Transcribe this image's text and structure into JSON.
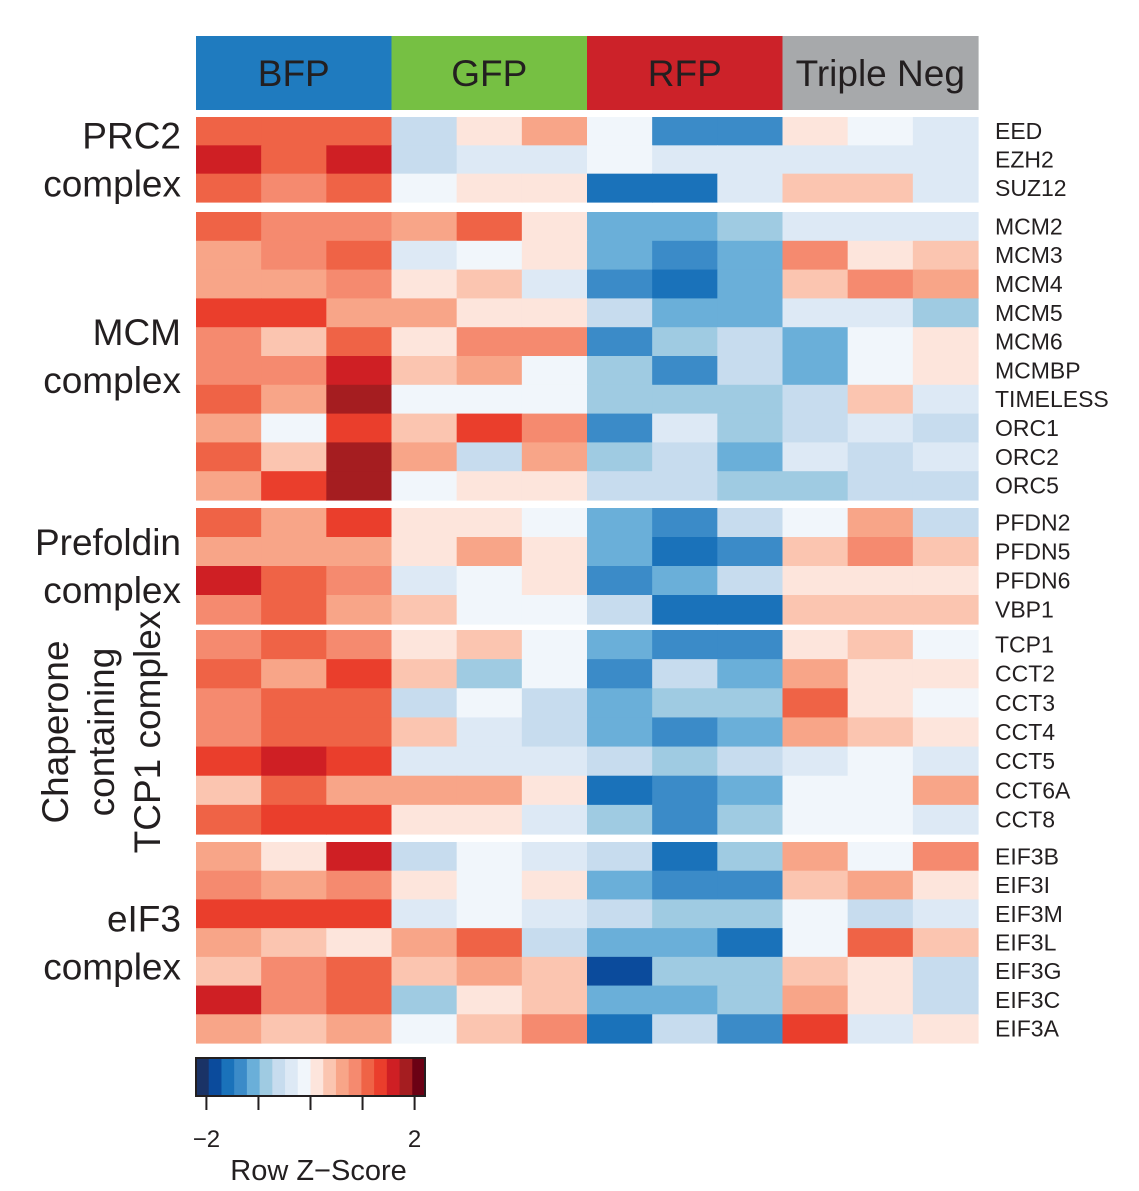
{
  "chart_data": {
    "type": "heatmap",
    "value_scale": "discrete levels -8..8 (each level ~0.25 Z), colorbar spans about -2.2..2.2",
    "column_groups": [
      {
        "label": "BFP",
        "color": "#1f7bbf",
        "replicates": 3
      },
      {
        "label": "GFP",
        "color": "#76c043",
        "replicates": 3
      },
      {
        "label": "RFP",
        "color": "#cc2229",
        "replicates": 3
      },
      {
        "label": "Triple Neg",
        "color": "#a7a9ab",
        "replicates": 3
      }
    ],
    "row_groups": [
      {
        "label_lines": [
          "PRC2",
          "complex"
        ],
        "orientation": "horizontal",
        "rows": [
          {
            "name": "EED",
            "values": [
              5,
              5,
              5,
              -3,
              1,
              3,
              -1,
              -6,
              -6,
              1,
              -1,
              -2
            ]
          },
          {
            "name": "EZH2",
            "values": [
              7,
              5,
              7,
              -3,
              -2,
              -2,
              -1,
              -2,
              -2,
              -2,
              -2,
              -2
            ]
          },
          {
            "name": "SUZ12",
            "values": [
              5,
              4,
              5,
              -1,
              1,
              1,
              -7,
              -7,
              -2,
              2,
              2,
              -2
            ]
          }
        ]
      },
      {
        "label_lines": [
          "MCM",
          "complex"
        ],
        "orientation": "horizontal",
        "rows": [
          {
            "name": "MCM2",
            "values": [
              5,
              4,
              4,
              3,
              5,
              1,
              -5,
              -5,
              -4,
              -2,
              -2,
              -2
            ]
          },
          {
            "name": "MCM3",
            "values": [
              3,
              4,
              5,
              -2,
              -1,
              1,
              -5,
              -6,
              -5,
              4,
              1,
              2
            ]
          },
          {
            "name": "MCM4",
            "values": [
              3,
              3,
              4,
              1,
              2,
              -2,
              -6,
              -7,
              -5,
              2,
              4,
              3
            ]
          },
          {
            "name": "MCM5",
            "values": [
              6,
              6,
              3,
              3,
              1,
              1,
              -3,
              -5,
              -5,
              -2,
              -2,
              -4
            ]
          },
          {
            "name": "MCM6",
            "values": [
              4,
              2,
              5,
              1,
              4,
              4,
              -6,
              -4,
              -3,
              -5,
              -1,
              1
            ]
          },
          {
            "name": "MCMBP",
            "values": [
              4,
              4,
              7,
              2,
              3,
              -1,
              -4,
              -6,
              -3,
              -5,
              -1,
              1
            ]
          },
          {
            "name": "TIMELESS",
            "values": [
              5,
              3,
              8,
              -1,
              -1,
              -1,
              -4,
              -4,
              -4,
              -3,
              2,
              -2
            ]
          },
          {
            "name": "ORC1",
            "values": [
              3,
              -1,
              6,
              2,
              6,
              4,
              -6,
              -2,
              -4,
              -3,
              -2,
              -3
            ]
          },
          {
            "name": "ORC2",
            "values": [
              5,
              2,
              8,
              3,
              -3,
              3,
              -4,
              -3,
              -5,
              -2,
              -3,
              -2
            ]
          },
          {
            "name": "ORC5",
            "values": [
              3,
              6,
              8,
              -1,
              1,
              1,
              -3,
              -3,
              -4,
              -4,
              -3,
              -3
            ]
          }
        ]
      },
      {
        "label_lines": [
          "Prefoldin",
          "complex"
        ],
        "orientation": "horizontal",
        "rows": [
          {
            "name": "PFDN2",
            "values": [
              5,
              3,
              6,
              1,
              1,
              -1,
              -5,
              -6,
              -3,
              -1,
              3,
              -3
            ]
          },
          {
            "name": "PFDN5",
            "values": [
              3,
              3,
              3,
              1,
              3,
              1,
              -5,
              -7,
              -6,
              2,
              4,
              2
            ]
          },
          {
            "name": "PFDN6",
            "values": [
              7,
              5,
              4,
              -2,
              -1,
              1,
              -6,
              -5,
              -3,
              1,
              1,
              1
            ]
          },
          {
            "name": "VBP1",
            "values": [
              4,
              5,
              3,
              2,
              -1,
              -1,
              -3,
              -7,
              -7,
              2,
              2,
              2
            ]
          }
        ]
      },
      {
        "label_lines": [
          "Chaperone",
          "containing",
          "TCP1 complex"
        ],
        "orientation": "vertical",
        "rows": [
          {
            "name": "TCP1",
            "values": [
              4,
              5,
              4,
              1,
              2,
              -1,
              -5,
              -6,
              -6,
              1,
              2,
              -1
            ]
          },
          {
            "name": "CCT2",
            "values": [
              5,
              3,
              6,
              2,
              -4,
              -1,
              -6,
              -3,
              -5,
              3,
              1,
              1
            ]
          },
          {
            "name": "CCT3",
            "values": [
              4,
              5,
              5,
              -3,
              -1,
              -3,
              -5,
              -4,
              -4,
              5,
              1,
              -1
            ]
          },
          {
            "name": "CCT4",
            "values": [
              4,
              5,
              5,
              2,
              -2,
              -3,
              -5,
              -6,
              -5,
              3,
              2,
              1
            ]
          },
          {
            "name": "CCT5",
            "values": [
              6,
              7,
              6,
              -2,
              -2,
              -2,
              -3,
              -4,
              -3,
              -2,
              -1,
              -2
            ]
          },
          {
            "name": "CCT6A",
            "values": [
              2,
              5,
              3,
              3,
              3,
              1,
              -7,
              -6,
              -5,
              -1,
              -1,
              3
            ]
          },
          {
            "name": "CCT8",
            "values": [
              5,
              6,
              6,
              1,
              1,
              -2,
              -4,
              -6,
              -4,
              -1,
              -1,
              -2
            ]
          }
        ]
      },
      {
        "label_lines": [
          "eIF3",
          "complex"
        ],
        "orientation": "horizontal",
        "rows": [
          {
            "name": "EIF3B",
            "values": [
              3,
              1,
              7,
              -3,
              -1,
              -2,
              -3,
              -7,
              -4,
              3,
              -1,
              4
            ]
          },
          {
            "name": "EIF3I",
            "values": [
              4,
              3,
              4,
              1,
              -1,
              1,
              -5,
              -6,
              -6,
              2,
              3,
              1
            ]
          },
          {
            "name": "EIF3M",
            "values": [
              6,
              6,
              6,
              -2,
              -1,
              -2,
              -3,
              -4,
              -4,
              -1,
              -3,
              -2
            ]
          },
          {
            "name": "EIF3L",
            "values": [
              3,
              2,
              1,
              3,
              5,
              -3,
              -5,
              -5,
              -7,
              -1,
              5,
              2
            ]
          },
          {
            "name": "EIF3G",
            "values": [
              2,
              4,
              5,
              2,
              3,
              2,
              -8,
              -4,
              -4,
              2,
              1,
              -3
            ]
          },
          {
            "name": "EIF3C",
            "values": [
              7,
              4,
              5,
              -4,
              1,
              2,
              -5,
              -5,
              -4,
              3,
              1,
              -3
            ]
          },
          {
            "name": "EIF3A",
            "values": [
              3,
              2,
              3,
              -1,
              2,
              4,
              -7,
              -3,
              -6,
              6,
              -2,
              1
            ]
          }
        ]
      }
    ],
    "colorbar": {
      "palette": [
        "#1a3366",
        "#0b4b9c",
        "#1a72ba",
        "#3b8bc8",
        "#6aafd9",
        "#9fcbe2",
        "#c7dcee",
        "#dde9f5",
        "#f1f6fb",
        "#fde5dc",
        "#fbc5b0",
        "#f8a588",
        "#f58a6f",
        "#ef6346",
        "#ea3e2c",
        "#cf1f24",
        "#a51d20",
        "#6b0114"
      ],
      "tick_labels": [
        "−2",
        "2"
      ],
      "tick_values": [
        -2,
        -1,
        0,
        1,
        2
      ],
      "range": [
        -2.2,
        2.2
      ],
      "title": "Row Z−Score"
    }
  }
}
